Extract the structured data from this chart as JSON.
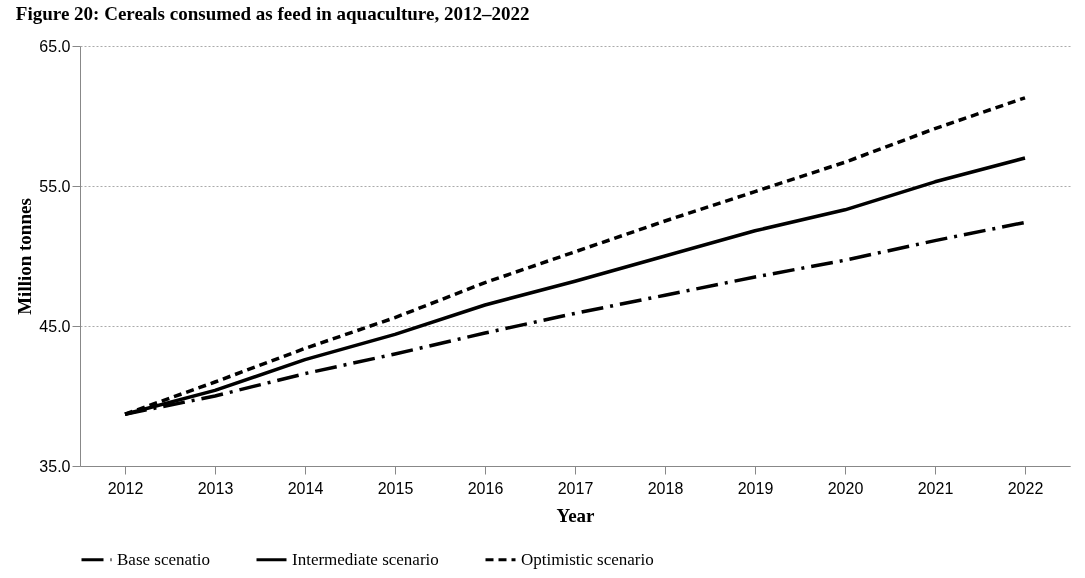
{
  "chart_data": {
    "type": "line",
    "title": "Figure 20: Cereals consumed as feed in aquaculture, 2012–2022",
    "xlabel": "Year",
    "ylabel": "Million tonnes",
    "categories": [
      "2012",
      "2013",
      "2014",
      "2015",
      "2016",
      "2017",
      "2018",
      "2019",
      "2020",
      "2021",
      "2022"
    ],
    "series": [
      {
        "name": "Base scenatio",
        "color": "#000000",
        "line_style": "dashed",
        "values": [
          38.7,
          40.0,
          41.6,
          43.0,
          44.5,
          45.9,
          47.2,
          48.5,
          49.7,
          51.1,
          52.4
        ]
      },
      {
        "name": "Intermediate scenario",
        "color": "#000000",
        "line_style": "solid",
        "values": [
          38.7,
          40.4,
          42.6,
          44.4,
          46.5,
          48.2,
          50.0,
          51.8,
          53.3,
          55.3,
          57.0
        ]
      },
      {
        "name": "Optimistic scenario",
        "color": "#000000",
        "line_style": "dotted",
        "values": [
          38.7,
          41.0,
          43.4,
          45.6,
          48.1,
          50.3,
          52.5,
          54.6,
          56.7,
          59.1,
          61.3
        ]
      }
    ],
    "ylim": [
      35,
      65
    ],
    "yticks": [
      {
        "value": 35,
        "label": "35.0"
      },
      {
        "value": 45,
        "label": "45.0"
      },
      {
        "value": 55,
        "label": "55.0"
      },
      {
        "value": 65,
        "label": "65.0"
      }
    ],
    "grid": "y",
    "legend": "bottom",
    "marker": "none"
  }
}
